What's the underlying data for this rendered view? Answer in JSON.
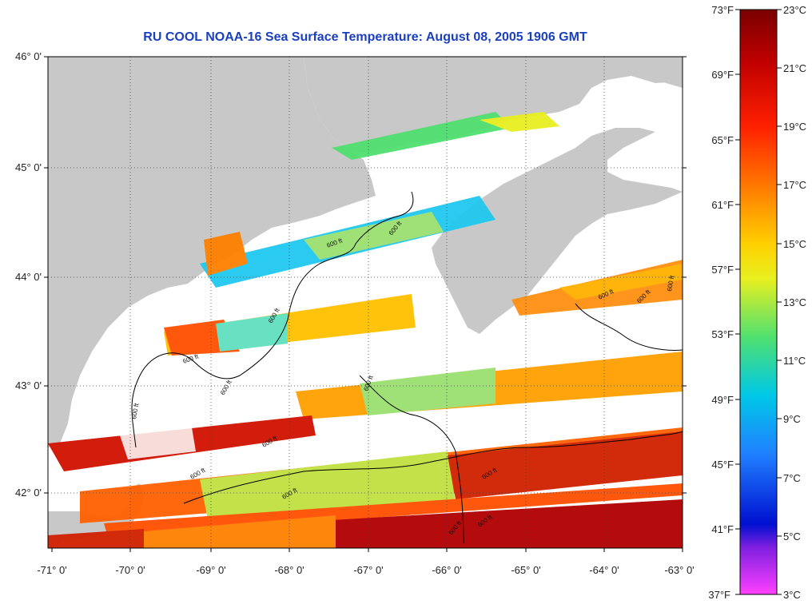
{
  "title": "RU COOL  NOAA-16  Sea Surface Temperature:  August 08, 2005 1906 GMT",
  "map": {
    "lat_labels": [
      "46° 0'",
      "45° 0'",
      "44° 0'",
      "43° 0'",
      "42° 0'"
    ],
    "lon_labels": [
      "-71° 0'",
      "-70° 0'",
      "-69° 0'",
      "-68° 0'",
      "-67° 0'",
      "-66° 0'",
      "-65° 0'",
      "-64° 0'",
      "-63° 0'"
    ],
    "contour_label": "600 ft",
    "land_color": "#c8c8c8",
    "cloud_color": "#ffffff"
  },
  "colorbar": {
    "fahrenheit_labels": [
      "73°F",
      "69°F",
      "65°F",
      "61°F",
      "57°F",
      "53°F",
      "49°F",
      "45°F",
      "41°F",
      "37°F"
    ],
    "celsius_labels": [
      "23°C",
      "21°C",
      "19°C",
      "17°C",
      "15°C",
      "13°C",
      "11°C",
      "9°C",
      "7°C",
      "5°C",
      "3°C"
    ],
    "colors": [
      "#7a0000",
      "#c00000",
      "#ff2000",
      "#ff8000",
      "#ffd000",
      "#e8f020",
      "#50e070",
      "#00c8e8",
      "#2080ff",
      "#0010d0",
      "#8020e0",
      "#ff40ff"
    ]
  }
}
